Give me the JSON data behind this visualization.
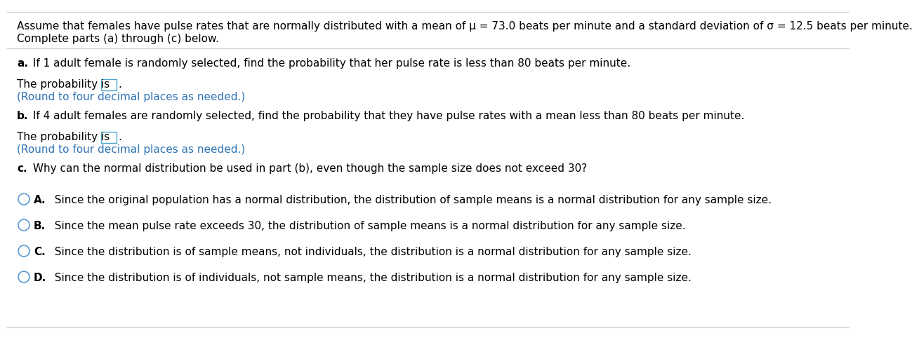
{
  "bg_color": "#ffffff",
  "header_text": "Assume that females have pulse rates that are normally distributed with a mean of μ = 73.0 beats per minute and a standard deviation of σ = 12.5 beats per minute.",
  "header_text2": "Complete parts (a) through (c) below.",
  "part_a_label": "a.",
  "part_a_text": " If 1 adult female is randomly selected, find the probability that her pulse rate is less than 80 beats per minute.",
  "prob_is_text": "The probability is",
  "round_text": "(Round to four decimal places as needed.)",
  "part_b_label": "b.",
  "part_b_text": " If 4 adult females are randomly selected, find the probability that they have pulse rates with a mean less than 80 beats per minute.",
  "part_c_label": "c.",
  "part_c_text": " Why can the normal distribution be used in part (b), even though the sample size does not exceed 30?",
  "option_A_bold": "A.",
  "option_A_text": "  Since the original population has a normal distribution, the distribution of sample means is a normal distribution for any sample size.",
  "option_B_bold": "B.",
  "option_B_text": "  Since the mean pulse rate exceeds 30, the distribution of sample means is a normal distribution for any sample size.",
  "option_C_bold": "C.",
  "option_C_text": "  Since the distribution is of sample means, not individuals, the distribution is a normal distribution for any sample size.",
  "option_D_bold": "D.",
  "option_D_text": "  Since the distribution is of individuals, not sample means, the distribution is a normal distribution for any sample size.",
  "text_color": "#000000",
  "blue_color": "#2E74B5",
  "box_border_color": "#4DA6C8",
  "circle_color": "#5B9BD5",
  "sep_color": "#CCCCCC",
  "font_size": 11.0,
  "bold_font_size": 11.0
}
